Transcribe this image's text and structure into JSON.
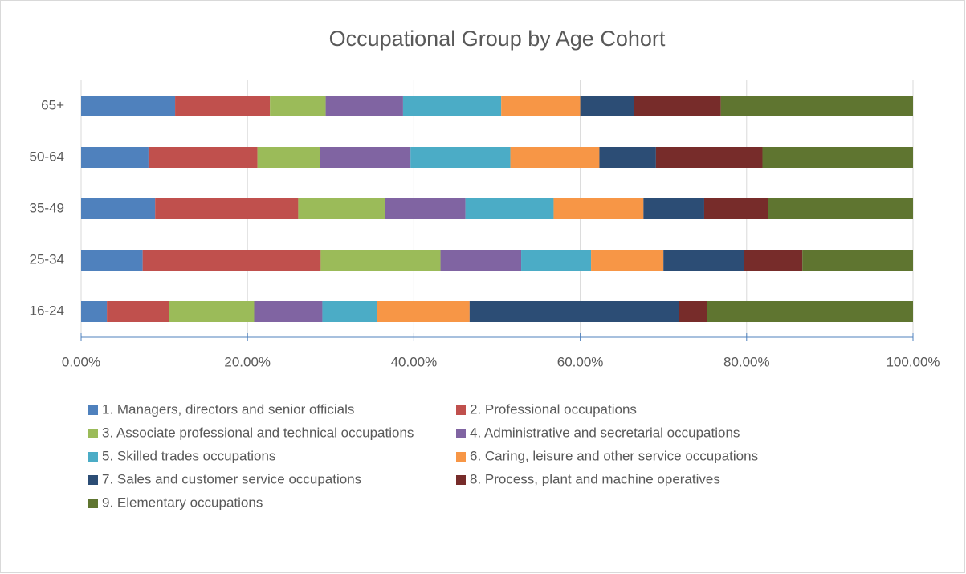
{
  "chart_data": {
    "type": "stacked_bar_horizontal",
    "title": "Occupational Group by Age Cohort",
    "categories": [
      "16-24",
      "25-34",
      "35-49",
      "50-64",
      "65+"
    ],
    "series": [
      {
        "name": "1. Managers, directors and senior officials",
        "color": "#4f81bd",
        "values": [
          3.1,
          7.4,
          8.9,
          8.1,
          11.3
        ]
      },
      {
        "name": "2. Professional occupations",
        "color": "#c0504d",
        "values": [
          7.5,
          21.4,
          17.2,
          13.1,
          11.4
        ]
      },
      {
        "name": "3. Associate professional and technical occupations",
        "color": "#9bbb59",
        "values": [
          10.2,
          14.4,
          10.4,
          7.5,
          6.7
        ]
      },
      {
        "name": "4. Administrative and secretarial occupations",
        "color": "#8064a2",
        "values": [
          8.2,
          9.7,
          9.7,
          10.9,
          9.3
        ]
      },
      {
        "name": "5. Skilled trades occupations",
        "color": "#4bacc6",
        "values": [
          6.6,
          8.4,
          10.6,
          12.0,
          11.8
        ]
      },
      {
        "name": "6. Caring, leisure and other service occupations",
        "color": "#f79646",
        "values": [
          11.1,
          8.7,
          10.8,
          10.7,
          9.5
        ]
      },
      {
        "name": "7. Sales and customer service occupations",
        "color": "#2c4d75",
        "values": [
          25.2,
          9.7,
          7.3,
          6.8,
          6.5
        ]
      },
      {
        "name": "8. Process, plant and machine operatives",
        "color": "#772c2a",
        "values": [
          3.3,
          7.0,
          7.7,
          12.8,
          10.4
        ]
      },
      {
        "name": "9. Elementary occupations",
        "color": "#5f7530",
        "values": [
          24.8,
          13.3,
          17.4,
          18.1,
          23.1
        ]
      }
    ],
    "xlim": [
      0,
      100
    ],
    "xticks": [
      {
        "value": 0,
        "label": "0.00%"
      },
      {
        "value": 20,
        "label": "20.00%"
      },
      {
        "value": 40,
        "label": "40.00%"
      },
      {
        "value": 60,
        "label": "60.00%"
      },
      {
        "value": 80,
        "label": "80.00%"
      },
      {
        "value": 100,
        "label": "100.00%"
      }
    ],
    "grid": true,
    "legend": "bottom"
  }
}
